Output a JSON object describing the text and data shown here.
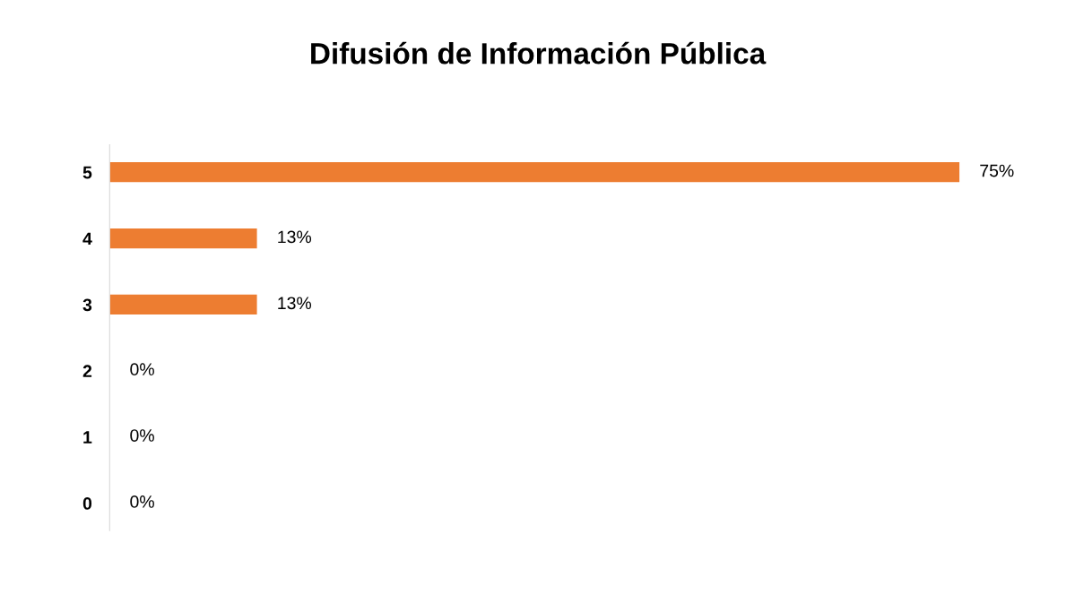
{
  "chart_data": {
    "type": "bar",
    "orientation": "horizontal",
    "title": "Difusión de Información Pública",
    "categories": [
      "5",
      "4",
      "3",
      "2",
      "1",
      "0"
    ],
    "values": [
      75,
      13,
      13,
      0,
      0,
      0
    ],
    "value_labels": [
      "75%",
      "13%",
      "13%",
      "0%",
      "0%",
      "0%"
    ],
    "color": "#ed7d31",
    "tick_labels": "y",
    "grid": false,
    "legend": false
  }
}
